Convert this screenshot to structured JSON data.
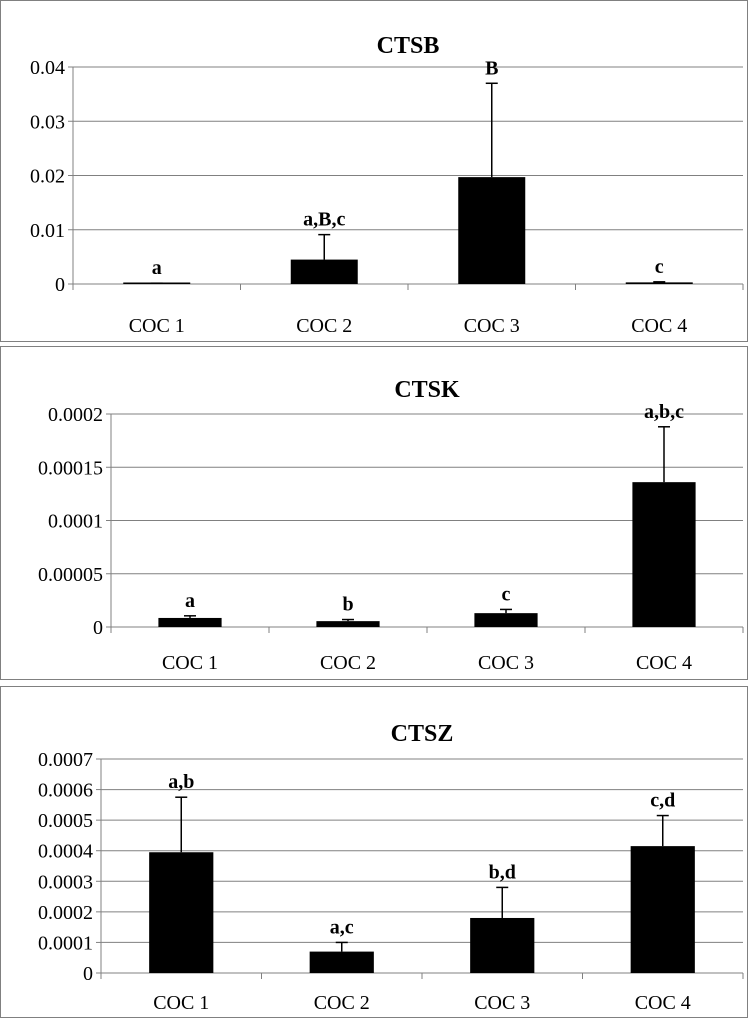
{
  "chart_data": [
    {
      "type": "bar",
      "title": "CTSB",
      "categories": [
        "COC 1",
        "COC 2",
        "COC 3",
        "COC 4"
      ],
      "values": [
        0.0001,
        0.0045,
        0.0197,
        0.0003
      ],
      "errors": [
        5e-05,
        0.0046,
        0.0173,
        0.0001
      ],
      "annotations": [
        "a",
        "a,B,c",
        "B",
        "c"
      ],
      "yticks": [
        "0",
        "0.01",
        "0.02",
        "0.03",
        "0.04"
      ],
      "ylim": [
        0,
        0.04
      ],
      "grid": true,
      "bar_color": "#000000"
    },
    {
      "type": "bar",
      "title": "CTSK",
      "categories": [
        "COC 1",
        "COC 2",
        "COC 3",
        "COC 4"
      ],
      "values": [
        8.5e-06,
        5.5e-06,
        1.3e-05,
        0.000136
      ],
      "errors": [
        2e-06,
        1.5e-06,
        3.5e-06,
        5.2e-05
      ],
      "annotations": [
        "a",
        "b",
        "c",
        "a,b,c"
      ],
      "yticks": [
        "0",
        "0.00005",
        "0.0001",
        "0.00015",
        "0.0002"
      ],
      "ylim": [
        0,
        0.0002
      ],
      "grid": true,
      "bar_color": "#000000"
    },
    {
      "type": "bar",
      "title": "CTSZ",
      "categories": [
        "COC 1",
        "COC 2",
        "COC 3",
        "COC 4"
      ],
      "values": [
        0.000395,
        7e-05,
        0.00018,
        0.000415
      ],
      "errors": [
        0.00018,
        3e-05,
        0.0001,
        0.0001
      ],
      "annotations": [
        "a,b",
        "a,c",
        "b,d",
        "c,d"
      ],
      "yticks": [
        "0",
        "0.0001",
        "0.0002",
        "0.0003",
        "0.0004",
        "0.0005",
        "0.0006",
        "0.0007"
      ],
      "ylim": [
        0,
        0.0007
      ],
      "grid": true,
      "bar_color": "#000000"
    }
  ]
}
